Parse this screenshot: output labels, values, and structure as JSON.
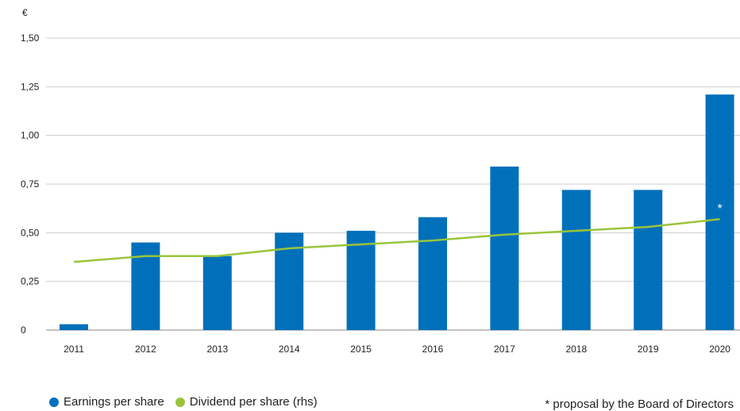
{
  "chart_data": {
    "type": "bar",
    "ylabel": "€",
    "ylim": [
      0,
      1.5
    ],
    "yticks": [
      "0",
      "0,25",
      "0,50",
      "0,75",
      "1,00",
      "1,25",
      "1,50"
    ],
    "categories": [
      "2011",
      "2012",
      "2013",
      "2014",
      "2015",
      "2016",
      "2017",
      "2018",
      "2019",
      "2020"
    ],
    "grid": true,
    "series": [
      {
        "name": "Earnings per share",
        "kind": "bar",
        "color": "#0070bb",
        "values": [
          0.03,
          0.45,
          0.38,
          0.5,
          0.51,
          0.58,
          0.84,
          0.72,
          0.72,
          1.21
        ]
      },
      {
        "name": "Dividend per share (rhs)",
        "kind": "line",
        "color": "#9ac43c",
        "values": [
          0.35,
          0.38,
          0.38,
          0.42,
          0.44,
          0.46,
          0.49,
          0.51,
          0.53,
          0.57
        ]
      }
    ],
    "annotation": {
      "text": "*",
      "category": "2020"
    },
    "legend_position": "bottom-left"
  },
  "footnote": "* proposal by the Board of Directors"
}
